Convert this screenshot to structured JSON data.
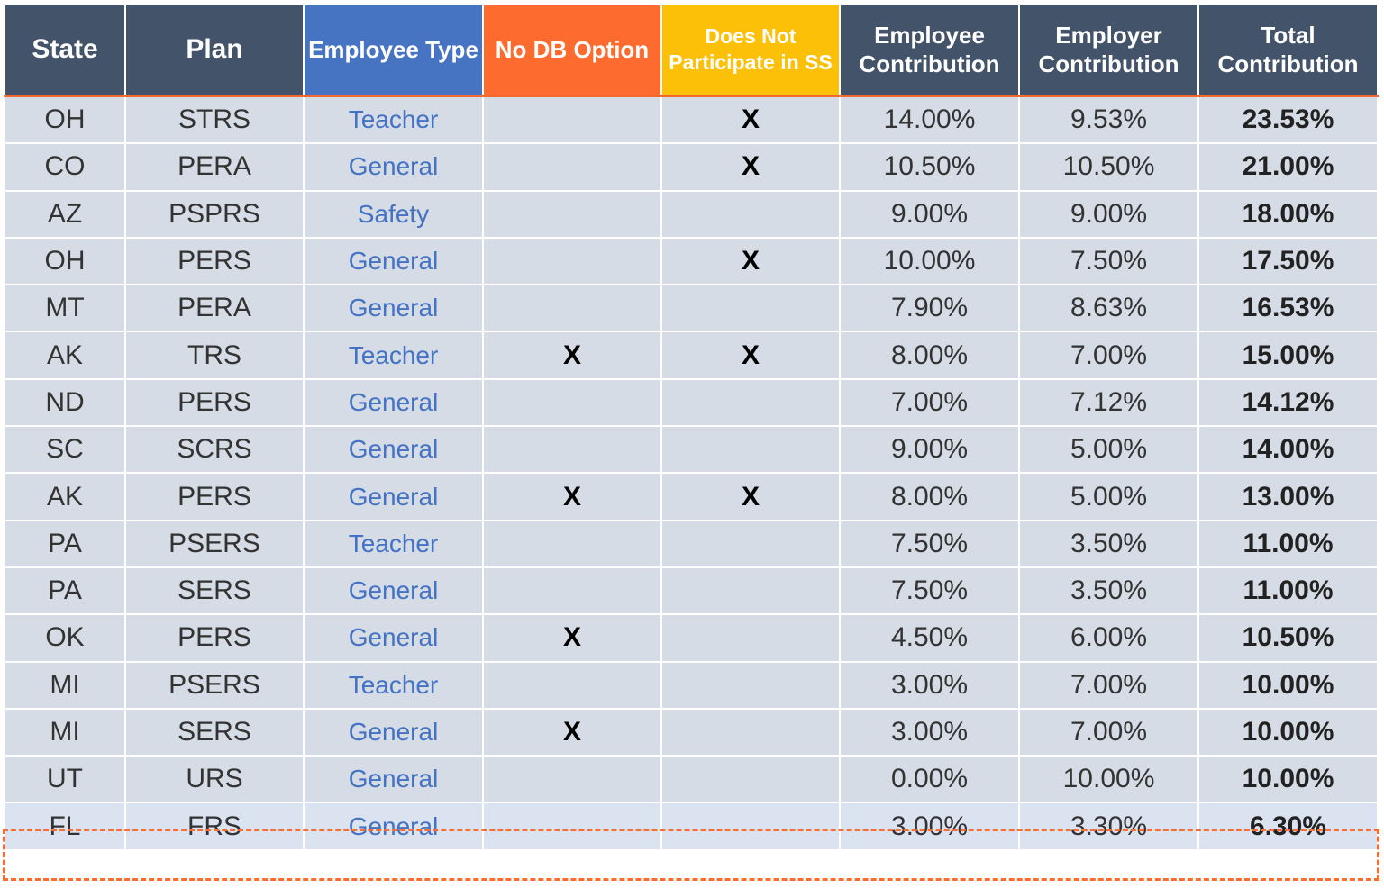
{
  "colors": {
    "header_dark": "#435369",
    "header_blue": "#4673c2",
    "header_orange": "#fd6b2f",
    "header_yellow": "#fdc008",
    "row_bg": "#d6dce5",
    "type_text": "#4472c4",
    "highlight_border": "#fd6b2f"
  },
  "headers": [
    "State",
    "Plan",
    "Employee Type",
    "No DB Option",
    "Does Not Participate in SS",
    "Employee Contribution",
    "Employer Contribution",
    "Total Contribution"
  ],
  "rows": [
    [
      "OH",
      "STRS",
      "Teacher",
      "",
      "X",
      "14.00%",
      "9.53%",
      "23.53%"
    ],
    [
      "CO",
      "PERA",
      "General",
      "",
      "X",
      "10.50%",
      "10.50%",
      "21.00%"
    ],
    [
      "AZ",
      "PSPRS",
      "Safety",
      "",
      "",
      "9.00%",
      "9.00%",
      "18.00%"
    ],
    [
      "OH",
      "PERS",
      "General",
      "",
      "X",
      "10.00%",
      "7.50%",
      "17.50%"
    ],
    [
      "MT",
      "PERA",
      "General",
      "",
      "",
      "7.90%",
      "8.63%",
      "16.53%"
    ],
    [
      "AK",
      "TRS",
      "Teacher",
      "X",
      "X",
      "8.00%",
      "7.00%",
      "15.00%"
    ],
    [
      "ND",
      "PERS",
      "General",
      "",
      "",
      "7.00%",
      "7.12%",
      "14.12%"
    ],
    [
      "SC",
      "SCRS",
      "General",
      "",
      "",
      "9.00%",
      "5.00%",
      "14.00%"
    ],
    [
      "AK",
      "PERS",
      "General",
      "X",
      "X",
      "8.00%",
      "5.00%",
      "13.00%"
    ],
    [
      "PA",
      "PSERS",
      "Teacher",
      "",
      "",
      "7.50%",
      "3.50%",
      "11.00%"
    ],
    [
      "PA",
      "SERS",
      "General",
      "",
      "",
      "7.50%",
      "3.50%",
      "11.00%"
    ],
    [
      "OK",
      "PERS",
      "General",
      "X",
      "",
      "4.50%",
      "6.00%",
      "10.50%"
    ],
    [
      "MI",
      "PSERS",
      "Teacher",
      "",
      "",
      "3.00%",
      "7.00%",
      "10.00%"
    ],
    [
      "MI",
      "SERS",
      "General",
      "X",
      "",
      "3.00%",
      "7.00%",
      "10.00%"
    ],
    [
      "UT",
      "URS",
      "General",
      "",
      "",
      "0.00%",
      "10.00%",
      "10.00%"
    ],
    [
      "FL",
      "FRS",
      "General",
      "",
      "",
      "3.00%",
      "3.30%",
      "6.30%"
    ]
  ],
  "highlighted_row": 15
}
